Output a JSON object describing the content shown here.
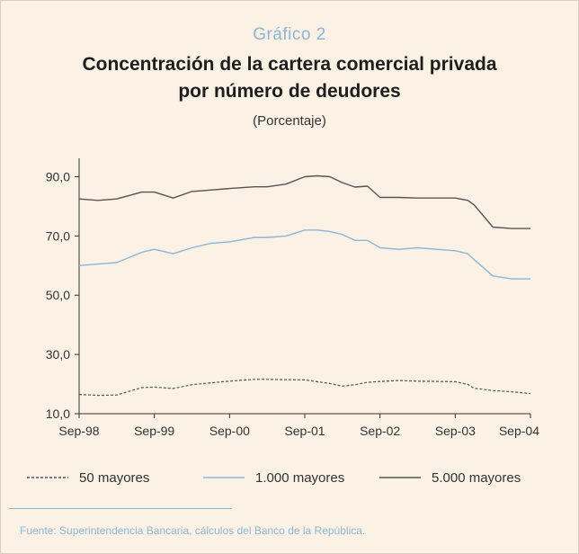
{
  "figure": {
    "kicker": "Gráfico 2",
    "title_line1": "Concentración de la cartera comercial privada",
    "title_line2": "por número de deudores",
    "unit_label": "(Porcentaje)",
    "source": "Fuente: Superintendencia Bancaria, cálculos del Banco de la República."
  },
  "chart_data": {
    "type": "line",
    "title": "Concentración de la cartera comercial privada por número de deudores",
    "ylabel": "(Porcentaje)",
    "xlabel": "",
    "ylim": [
      10,
      95
    ],
    "yticks": [
      10,
      30,
      50,
      70,
      90
    ],
    "ytick_labels": [
      "10,0",
      "30,0",
      "50,0",
      "70,0",
      "90,0"
    ],
    "x_range": [
      0,
      72
    ],
    "xtick_positions": [
      0,
      12,
      24,
      36,
      48,
      60,
      72
    ],
    "xtick_labels": [
      "Sep-98",
      "Sep-99",
      "Sep-00",
      "Sep-01",
      "Sep-02",
      "Sep-03",
      "Sep-04"
    ],
    "grid": false,
    "legend_position": "bottom",
    "x": [
      0,
      3,
      6,
      10,
      12,
      15,
      18,
      21,
      24,
      28,
      30,
      33,
      36,
      38,
      40,
      42,
      44,
      46,
      48,
      51,
      54,
      57,
      60,
      62,
      63,
      66,
      69,
      72
    ],
    "series": [
      {
        "name": "50 mayores",
        "style": "dashed",
        "color": "#555555",
        "values": [
          16.5,
          16.2,
          16.3,
          18.8,
          19.0,
          18.5,
          19.8,
          20.4,
          21.0,
          21.6,
          21.6,
          21.5,
          21.4,
          20.8,
          20.2,
          19.3,
          19.8,
          20.6,
          20.9,
          21.2,
          21.0,
          20.9,
          20.8,
          19.9,
          18.6,
          17.8,
          17.4,
          16.8
        ]
      },
      {
        "name": "1.000 mayores",
        "style": "solid",
        "color": "#8fb5d6",
        "values": [
          60.0,
          60.5,
          61.0,
          64.5,
          65.5,
          64.0,
          66.0,
          67.5,
          68.0,
          69.5,
          69.5,
          70.0,
          72.0,
          72.0,
          71.5,
          70.5,
          68.5,
          68.5,
          66.0,
          65.5,
          66.0,
          65.5,
          65.0,
          64.0,
          62.0,
          56.5,
          55.5,
          55.5
        ]
      },
      {
        "name": "5.000 mayores",
        "style": "solid",
        "color": "#555555",
        "values": [
          82.5,
          82.0,
          82.5,
          84.8,
          84.8,
          82.8,
          85.0,
          85.5,
          86.0,
          86.6,
          86.6,
          87.5,
          90.0,
          90.3,
          90.0,
          88.0,
          86.5,
          86.8,
          83.0,
          83.0,
          82.8,
          82.8,
          82.8,
          82.0,
          80.5,
          73.0,
          72.5,
          72.5
        ]
      }
    ]
  }
}
